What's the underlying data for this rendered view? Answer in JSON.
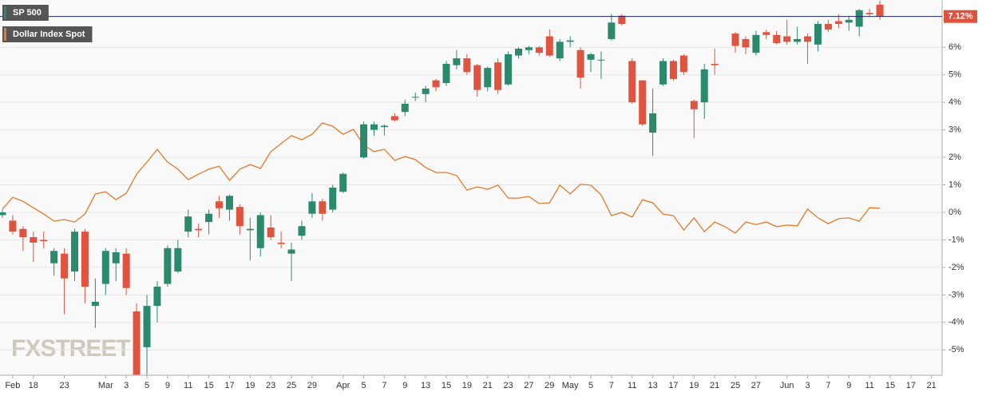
{
  "chart_data": {
    "type": "candlestick",
    "watermark": "FXSTREET",
    "categories": [
      null,
      "Feb",
      null,
      "18",
      null,
      null,
      "23",
      null,
      null,
      null,
      "Mar",
      null,
      "3",
      null,
      "5",
      null,
      "9",
      null,
      "11",
      null,
      "15",
      null,
      "17",
      null,
      "19",
      null,
      "23",
      null,
      "25",
      null,
      "29",
      null,
      null,
      "Apr",
      null,
      "5",
      null,
      "7",
      null,
      "9",
      null,
      "13",
      null,
      "15",
      null,
      "19",
      null,
      "21",
      null,
      "23",
      null,
      "27",
      null,
      "29",
      null,
      "May",
      null,
      "5",
      null,
      "7",
      null,
      "11",
      null,
      "13",
      null,
      "17",
      null,
      "19",
      null,
      "21",
      null,
      "25",
      null,
      "27",
      null,
      null,
      "Jun",
      null,
      "3",
      null,
      "7",
      null,
      "9",
      null,
      "11",
      null,
      "15",
      null,
      "17",
      null,
      "21"
    ],
    "series": [
      {
        "name": "SP 500",
        "type": "candlestick",
        "up_color": "#2b8a6e",
        "down_color": "#e0533f",
        "open": [
          -0.1,
          -0.3,
          -0.6,
          -0.9,
          -1.0,
          -1.85,
          -1.5,
          -2.15,
          -0.7,
          -3.4,
          -2.6,
          -1.85,
          -1.5,
          -3.6,
          -4.9,
          -3.4,
          -2.6,
          -2.15,
          -0.7,
          -0.6,
          -0.35,
          0.4,
          0.1,
          0.2,
          -0.65,
          -1.3,
          -0.55,
          -1.1,
          -1.5,
          -0.85,
          -0.05,
          0.4,
          0.1,
          0.75,
          null,
          2.0,
          3.0,
          3.1,
          3.5,
          3.65,
          4.2,
          4.3,
          4.8,
          4.7,
          5.35,
          5.6,
          5.35,
          4.55,
          5.45,
          4.65,
          5.7,
          5.9,
          6.0,
          6.4,
          5.6,
          6.2,
          5.9,
          5.55,
          5.55,
          6.3,
          7.15,
          5.5,
          4.8,
          2.9,
          4.65,
          5.5,
          5.7,
          4.05,
          4.0,
          5.4,
          null,
          6.5,
          6.3,
          5.8,
          6.55,
          6.45,
          6.4,
          6.2,
          6.4,
          6.1,
          6.85,
          6.95,
          6.9,
          6.75,
          7.25,
          7.55,
          null,
          null,
          null,
          null,
          null
        ],
        "high": [
          0.1,
          -0.1,
          -0.5,
          -0.7,
          -0.7,
          -1.3,
          -1.3,
          -0.6,
          -0.6,
          -2.4,
          -1.3,
          -1.3,
          -1.3,
          -3.3,
          -3.0,
          -2.5,
          -1.2,
          -1.0,
          0.1,
          -0.4,
          0.1,
          0.6,
          0.65,
          0.3,
          -0.2,
          0.0,
          -0.1,
          -0.7,
          -1.1,
          -0.3,
          0.7,
          0.5,
          1.0,
          1.45,
          null,
          3.3,
          3.3,
          3.2,
          3.6,
          4.1,
          4.35,
          4.6,
          4.85,
          5.5,
          5.9,
          5.75,
          5.4,
          5.3,
          5.6,
          5.85,
          6.0,
          6.05,
          6.05,
          6.65,
          6.3,
          6.4,
          6.0,
          5.8,
          5.85,
          7.2,
          7.2,
          5.6,
          4.8,
          4.5,
          5.6,
          5.55,
          5.75,
          4.1,
          5.4,
          5.95,
          null,
          6.55,
          6.4,
          6.6,
          6.65,
          6.6,
          7.0,
          6.75,
          6.5,
          6.95,
          7.0,
          7.2,
          7.15,
          7.4,
          7.4,
          7.7,
          null,
          null,
          null,
          null,
          null
        ],
        "low": [
          -0.2,
          -0.8,
          -1.4,
          -1.8,
          -1.3,
          -2.3,
          -3.7,
          -2.5,
          -3.3,
          -4.2,
          -3.0,
          -2.5,
          -3.0,
          -5.9,
          -5.9,
          -4.0,
          -2.7,
          -2.2,
          -0.9,
          -0.9,
          -0.8,
          -0.2,
          -0.3,
          -0.8,
          -1.75,
          -1.6,
          -1.0,
          -1.3,
          -2.5,
          -1.0,
          -0.2,
          -0.3,
          0.0,
          0.7,
          null,
          1.95,
          2.8,
          2.8,
          3.3,
          3.5,
          4.05,
          4.0,
          4.4,
          4.6,
          5.2,
          5.0,
          4.2,
          4.4,
          4.3,
          4.6,
          5.6,
          5.75,
          5.7,
          5.65,
          5.5,
          6.0,
          4.5,
          5.1,
          4.85,
          6.25,
          6.8,
          3.95,
          3.15,
          2.05,
          4.6,
          4.8,
          5.0,
          2.7,
          3.4,
          5.0,
          null,
          5.8,
          5.75,
          5.7,
          6.3,
          6.1,
          6.1,
          6.1,
          5.4,
          5.85,
          6.55,
          6.7,
          6.6,
          6.4,
          7.1,
          7.0,
          null,
          null,
          null,
          null,
          null
        ],
        "close": [
          0.0,
          -0.7,
          -0.9,
          -1.1,
          -1.05,
          -1.4,
          -2.4,
          -0.7,
          -2.7,
          -3.25,
          -1.4,
          -1.45,
          -2.75,
          -5.9,
          -3.4,
          -2.7,
          -1.3,
          -1.3,
          -0.15,
          -0.65,
          -0.05,
          0.15,
          0.6,
          -0.5,
          -0.6,
          -0.1,
          -0.9,
          -1.15,
          -1.35,
          -0.5,
          0.4,
          -0.05,
          0.9,
          1.4,
          null,
          3.2,
          3.2,
          3.15,
          3.35,
          3.95,
          4.2,
          4.5,
          4.55,
          5.4,
          5.6,
          5.1,
          4.45,
          5.25,
          4.45,
          5.75,
          5.95,
          6.0,
          5.8,
          5.7,
          6.2,
          6.25,
          4.9,
          5.75,
          5.55,
          6.9,
          6.85,
          4.0,
          3.2,
          3.6,
          5.5,
          4.85,
          5.1,
          3.75,
          5.2,
          5.35,
          null,
          6.05,
          6.0,
          6.45,
          6.45,
          6.15,
          6.2,
          6.3,
          6.2,
          6.85,
          6.65,
          6.85,
          7.0,
          7.35,
          7.2,
          7.12,
          null,
          null,
          null,
          null,
          null
        ]
      },
      {
        "name": "Dollar Index Spot",
        "type": "line",
        "color": "#e8782a",
        "values": [
          0.12,
          0.55,
          0.4,
          0.17,
          -0.06,
          -0.32,
          -0.26,
          -0.35,
          -0.06,
          0.67,
          0.75,
          0.46,
          0.7,
          1.39,
          1.83,
          2.29,
          1.83,
          1.57,
          1.19,
          1.39,
          1.57,
          1.68,
          1.16,
          1.57,
          1.74,
          1.6,
          2.21,
          2.5,
          2.79,
          2.64,
          2.84,
          3.25,
          3.13,
          2.84,
          3.02,
          2.44,
          2.21,
          2.29,
          1.89,
          2.03,
          1.92,
          1.63,
          1.45,
          1.45,
          1.34,
          0.81,
          0.93,
          0.84,
          0.99,
          0.52,
          0.52,
          0.58,
          0.32,
          0.35,
          0.99,
          0.67,
          1.02,
          0.99,
          0.64,
          -0.12,
          0,
          -0.17,
          0.46,
          0.35,
          -0.06,
          -0.12,
          -0.64,
          -0.2,
          -0.7,
          -0.35,
          -0.52,
          -0.75,
          -0.35,
          -0.44,
          -0.35,
          -0.52,
          -0.46,
          -0.49,
          0.12,
          -0.2,
          -0.41,
          -0.23,
          -0.2,
          -0.32,
          0.17,
          0.15,
          null,
          null,
          null,
          null,
          null
        ]
      }
    ],
    "last_value": {
      "value": 7.12,
      "label": "7.12%",
      "color": "#e0533f",
      "line_color": "#1e2a55"
    },
    "ylim": [
      -5.92,
      7.72
    ],
    "yticks": [
      {
        "value": -5,
        "label": "-5%"
      },
      {
        "value": -4,
        "label": "-4%"
      },
      {
        "value": -3,
        "label": "-3%"
      },
      {
        "value": -2,
        "label": "-2%"
      },
      {
        "value": -1,
        "label": "-1%"
      },
      {
        "value": 0,
        "label": "0%"
      },
      {
        "value": 1,
        "label": "1%"
      },
      {
        "value": 2,
        "label": "2%"
      },
      {
        "value": 3,
        "label": "3%"
      },
      {
        "value": 4,
        "label": "4%"
      },
      {
        "value": 5,
        "label": "5%"
      },
      {
        "value": 6,
        "label": "6%"
      }
    ],
    "grid": true,
    "legend": "top-left"
  }
}
